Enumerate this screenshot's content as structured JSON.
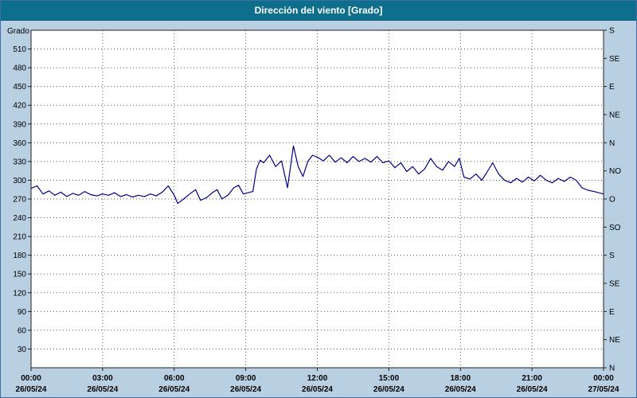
{
  "title": "Dirección del viento [Grado]",
  "colors": {
    "titlebar_bg": "#0e6f8d",
    "frame_bg": "#b9cfe2",
    "plot_bg": "#ffffff",
    "line": "#00008b",
    "grid": "#555555",
    "axis": "#222222",
    "text": "#000000"
  },
  "chart_data": {
    "type": "line",
    "title": "Dirección del viento [Grado]",
    "ylabel": "Grado",
    "ylim": [
      0,
      540
    ],
    "y_tick_step": 30,
    "grid": true,
    "x_range_hours": [
      0,
      24
    ],
    "x_ticks": [
      {
        "hour": 0,
        "time": "00:00",
        "date": "26/05/24"
      },
      {
        "hour": 3,
        "time": "03:00",
        "date": "26/05/24"
      },
      {
        "hour": 6,
        "time": "06:00",
        "date": "26/05/24"
      },
      {
        "hour": 9,
        "time": "09:00",
        "date": "26/05/24"
      },
      {
        "hour": 12,
        "time": "12:00",
        "date": "26/05/24"
      },
      {
        "hour": 15,
        "time": "15:00",
        "date": "26/05/24"
      },
      {
        "hour": 18,
        "time": "18:00",
        "date": "26/05/24"
      },
      {
        "hour": 21,
        "time": "21:00",
        "date": "26/05/24"
      },
      {
        "hour": 24,
        "time": "00:00",
        "date": "27/05/24"
      }
    ],
    "right_axis_labels": [
      {
        "value": 0,
        "label": "N"
      },
      {
        "value": 45,
        "label": "NE"
      },
      {
        "value": 90,
        "label": "E"
      },
      {
        "value": 135,
        "label": "SE"
      },
      {
        "value": 180,
        "label": "S"
      },
      {
        "value": 225,
        "label": "SO"
      },
      {
        "value": 270,
        "label": "O"
      },
      {
        "value": 315,
        "label": "NO"
      },
      {
        "value": 360,
        "label": "N"
      },
      {
        "value": 405,
        "label": "NE"
      },
      {
        "value": 450,
        "label": "E"
      },
      {
        "value": 495,
        "label": "SE"
      },
      {
        "value": 540,
        "label": "S"
      }
    ],
    "series": [
      {
        "name": "Dirección del viento [Grado]",
        "points": [
          [
            0.0,
            287
          ],
          [
            0.25,
            291
          ],
          [
            0.5,
            278
          ],
          [
            0.75,
            283
          ],
          [
            1.0,
            276
          ],
          [
            1.25,
            281
          ],
          [
            1.5,
            274
          ],
          [
            1.75,
            279
          ],
          [
            2.0,
            276
          ],
          [
            2.25,
            282
          ],
          [
            2.5,
            277
          ],
          [
            2.75,
            275
          ],
          [
            3.0,
            278
          ],
          [
            3.25,
            276
          ],
          [
            3.5,
            280
          ],
          [
            3.75,
            274
          ],
          [
            4.0,
            277
          ],
          [
            4.25,
            273
          ],
          [
            4.5,
            276
          ],
          [
            4.75,
            274
          ],
          [
            5.0,
            278
          ],
          [
            5.25,
            275
          ],
          [
            5.5,
            281
          ],
          [
            5.75,
            291
          ],
          [
            6.0,
            276
          ],
          [
            6.15,
            263
          ],
          [
            6.4,
            270
          ],
          [
            6.65,
            278
          ],
          [
            6.9,
            285
          ],
          [
            7.1,
            268
          ],
          [
            7.35,
            272
          ],
          [
            7.6,
            280
          ],
          [
            7.8,
            285
          ],
          [
            8.0,
            270
          ],
          [
            8.25,
            276
          ],
          [
            8.5,
            288
          ],
          [
            8.7,
            292
          ],
          [
            8.9,
            278
          ],
          [
            9.1,
            280
          ],
          [
            9.3,
            282
          ],
          [
            9.45,
            318
          ],
          [
            9.6,
            332
          ],
          [
            9.75,
            328
          ],
          [
            10.0,
            340
          ],
          [
            10.25,
            322
          ],
          [
            10.5,
            331
          ],
          [
            10.75,
            288
          ],
          [
            11.0,
            355
          ],
          [
            11.2,
            322
          ],
          [
            11.4,
            306
          ],
          [
            11.6,
            330
          ],
          [
            11.8,
            340
          ],
          [
            12.0,
            337
          ],
          [
            12.25,
            331
          ],
          [
            12.5,
            340
          ],
          [
            12.75,
            329
          ],
          [
            13.0,
            336
          ],
          [
            13.25,
            328
          ],
          [
            13.5,
            338
          ],
          [
            13.75,
            330
          ],
          [
            14.0,
            335
          ],
          [
            14.25,
            329
          ],
          [
            14.5,
            338
          ],
          [
            14.75,
            328
          ],
          [
            15.0,
            331
          ],
          [
            15.25,
            320
          ],
          [
            15.5,
            328
          ],
          [
            15.75,
            314
          ],
          [
            16.0,
            322
          ],
          [
            16.25,
            310
          ],
          [
            16.5,
            318
          ],
          [
            16.75,
            335
          ],
          [
            17.0,
            322
          ],
          [
            17.25,
            316
          ],
          [
            17.5,
            330
          ],
          [
            17.75,
            322
          ],
          [
            17.95,
            335
          ],
          [
            18.15,
            305
          ],
          [
            18.4,
            302
          ],
          [
            18.65,
            310
          ],
          [
            18.9,
            300
          ],
          [
            19.1,
            312
          ],
          [
            19.35,
            328
          ],
          [
            19.6,
            310
          ],
          [
            19.85,
            300
          ],
          [
            20.1,
            296
          ],
          [
            20.35,
            303
          ],
          [
            20.6,
            297
          ],
          [
            20.85,
            305
          ],
          [
            21.1,
            299
          ],
          [
            21.35,
            308
          ],
          [
            21.6,
            300
          ],
          [
            21.85,
            296
          ],
          [
            22.1,
            303
          ],
          [
            22.35,
            298
          ],
          [
            22.6,
            305
          ],
          [
            22.85,
            300
          ],
          [
            23.1,
            288
          ],
          [
            23.35,
            284
          ],
          [
            23.6,
            282
          ],
          [
            24.0,
            278
          ]
        ]
      }
    ]
  }
}
